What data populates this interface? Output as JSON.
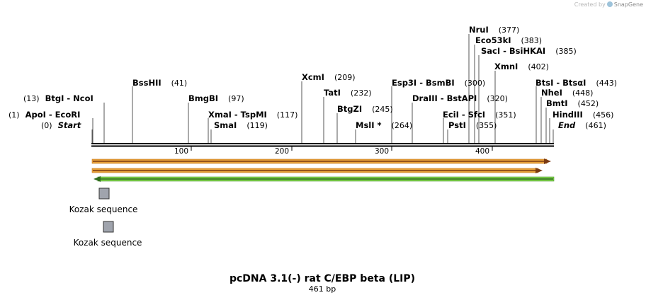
{
  "app": {
    "credit_prefix": "Created by",
    "credit_brand": "SnapGene"
  },
  "map": {
    "title": "pcDNA 3.1(-) rat C/EBP beta (LIP)",
    "length_label": "461 bp",
    "ruler": [
      "100",
      "200",
      "300",
      "400"
    ],
    "sites": [
      {
        "id": "nrui",
        "name": "NruI",
        "pos": "(377)"
      },
      {
        "id": "eco53ki",
        "name": "Eco53kI",
        "pos": "(383)"
      },
      {
        "id": "saci",
        "name": "SacI  - BsiHKAI",
        "pos": "(385)"
      },
      {
        "id": "xmni",
        "name": "XmnI",
        "pos": "(402)"
      },
      {
        "id": "bssh",
        "name": "BssHII",
        "pos": "(41)"
      },
      {
        "id": "xcmi",
        "name": "XcmI",
        "pos": "(209)"
      },
      {
        "id": "esp3i",
        "name": "Esp3I  - BsmBI",
        "pos": "(300)"
      },
      {
        "id": "btsi",
        "name": "BtsI  - BtsαI",
        "pos": "(443)"
      },
      {
        "id": "btgi",
        "name": "BtgI  - NcoI",
        "pos": "(13)"
      },
      {
        "id": "bmgbi",
        "name": "BmgBI",
        "pos": "(97)"
      },
      {
        "id": "tati",
        "name": "TatI",
        "pos": "(232)"
      },
      {
        "id": "draiii",
        "name": "DraIII  - BstAPI",
        "pos": "(320)"
      },
      {
        "id": "nhei",
        "name": "NheI",
        "pos": "(448)"
      },
      {
        "id": "btgzi",
        "name": "BtgZI",
        "pos": "(245)"
      },
      {
        "id": "bmti",
        "name": "BmtI",
        "pos": "(452)"
      },
      {
        "id": "apoi",
        "name": "ApoI  - EcoRI",
        "pos": "(1)"
      },
      {
        "id": "xmai",
        "name": "XmaI  - TspMI",
        "pos": "(117)"
      },
      {
        "id": "ecii",
        "name": "EciI  - SfcI",
        "pos": "(351)"
      },
      {
        "id": "hindiii",
        "name": "HindIII",
        "pos": "(456)"
      },
      {
        "id": "start",
        "name": "Start",
        "pos": "(0)"
      },
      {
        "id": "smai",
        "name": "SmaI",
        "pos": "(119)"
      },
      {
        "id": "msli",
        "name": "MslI *",
        "pos": "(264)"
      },
      {
        "id": "psti",
        "name": "PstI",
        "pos": "(355)"
      },
      {
        "id": "end",
        "name": "End",
        "pos": "(461)"
      }
    ],
    "features": [
      {
        "id": "kozak-1",
        "label": "Kozak sequence"
      },
      {
        "id": "kozak-2",
        "label": "Kozak sequence"
      }
    ],
    "colors": {
      "forward_arrow_fill": "#e8a23a",
      "forward_arrow_core": "#7a3a12",
      "reverse_arrow_fill": "#7ccf4a",
      "reverse_arrow_core": "#2f6b1e",
      "feature_box": "#a0a4ad"
    }
  }
}
